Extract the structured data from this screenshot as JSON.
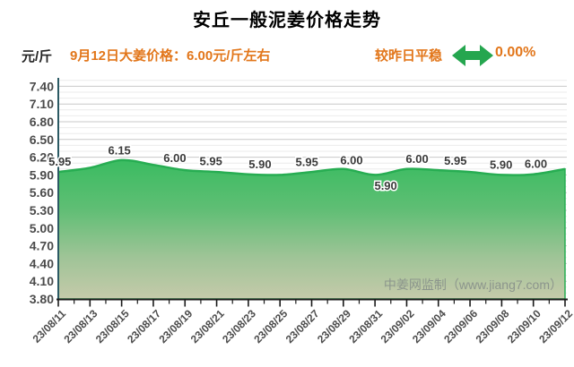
{
  "title": "安丘一般泥姜价格走势",
  "header": {
    "unit_label": "元/斤",
    "price_text": "9月12日大姜价格：6.00元/斤左右",
    "trend_text": "较昨日平稳",
    "trend_pct": "0.00%",
    "trend_icon": "left-right-arrow",
    "accent_orange": "#e2761a",
    "arrow_green": "#25a64f"
  },
  "watermark": "中姜网监制（www.jiang7.com）",
  "chart_data": {
    "type": "area",
    "title": "安丘一般泥姜价格走势",
    "ylabel": "元/斤",
    "ylim": [
      3.8,
      7.4
    ],
    "ytick_step_major": 0.3,
    "ytick_step_minor": 0.1,
    "grid": true,
    "yticks": [
      "7.40",
      "7.10",
      "6.80",
      "6.50",
      "6.20",
      "5.90",
      "5.60",
      "5.30",
      "5.00",
      "4.70",
      "4.40",
      "4.10",
      "3.80"
    ],
    "x": [
      "23/08/11",
      "23/08/13",
      "23/08/15",
      "23/08/17",
      "23/08/19",
      "23/08/21",
      "23/08/23",
      "23/08/25",
      "23/08/27",
      "23/08/29",
      "23/08/31",
      "23/09/02",
      "23/09/04",
      "23/09/06",
      "23/09/08",
      "23/09/10",
      "23/09/12"
    ],
    "values": [
      5.95,
      6.02,
      6.15,
      6.07,
      5.98,
      5.95,
      5.91,
      5.9,
      5.95,
      6.0,
      5.9,
      6.0,
      5.98,
      5.95,
      5.9,
      5.91,
      6.0
    ],
    "point_labels": [
      {
        "i": 0.05,
        "text": "5.95",
        "side": "above"
      },
      {
        "i": 1.93,
        "text": "6.15",
        "side": "above"
      },
      {
        "i": 3.68,
        "text": "6.00",
        "side": "above"
      },
      {
        "i": 4.82,
        "text": "5.95",
        "side": "above"
      },
      {
        "i": 6.37,
        "text": "5.90",
        "side": "above"
      },
      {
        "i": 7.85,
        "text": "5.95",
        "side": "above"
      },
      {
        "i": 9.26,
        "text": "6.00",
        "side": "above"
      },
      {
        "i": 10.34,
        "text": "5.90",
        "side": "below"
      },
      {
        "i": 11.33,
        "text": "6.00",
        "side": "above"
      },
      {
        "i": 12.54,
        "text": "5.95",
        "side": "above"
      },
      {
        "i": 13.98,
        "text": "5.90",
        "side": "above"
      },
      {
        "i": 15.08,
        "text": "6.00",
        "side": "above"
      }
    ],
    "colors": {
      "line": "#27ad52",
      "fill_top": "#3abc61",
      "fill_bottom": "#c5caaa",
      "grid_major": "#c9c9c9",
      "grid_minor": "#ebebeb",
      "axis": "#1a1a1a",
      "left_border": "#2c5a64",
      "tick_label": "#4b4b4b",
      "point_label": "#3a3a3a",
      "watermark": "#8b958c"
    }
  }
}
